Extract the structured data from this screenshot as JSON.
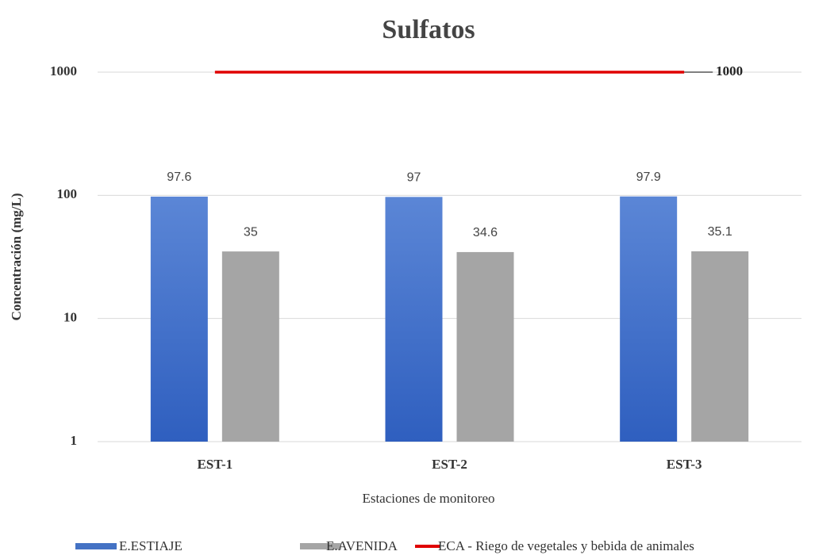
{
  "chart_data": {
    "type": "bar",
    "title": "Sulfatos",
    "x_label": "Estaciones de monitoreo",
    "y_label": "Concentración (mg/L)",
    "categories": [
      "EST-1",
      "EST-2",
      "EST-3"
    ],
    "series": [
      {
        "name": "E.ESTIAJE",
        "color": "#4472c4",
        "values": [
          97.6,
          97,
          97.9
        ]
      },
      {
        "name": "E.AVENIDA",
        "color": "#a5a5a5",
        "values": [
          35,
          34.6,
          35.1
        ]
      },
      {
        "name": "ECA - Riego de vegetales y bebida de animales",
        "type": "line",
        "color": "#e00000",
        "values": [
          1000,
          1000,
          1000
        ]
      }
    ],
    "ylim": [
      1,
      1000
    ],
    "yticks": [
      1,
      10,
      100,
      1000
    ],
    "log_scale": true,
    "grid": true,
    "legend": "bottom"
  }
}
